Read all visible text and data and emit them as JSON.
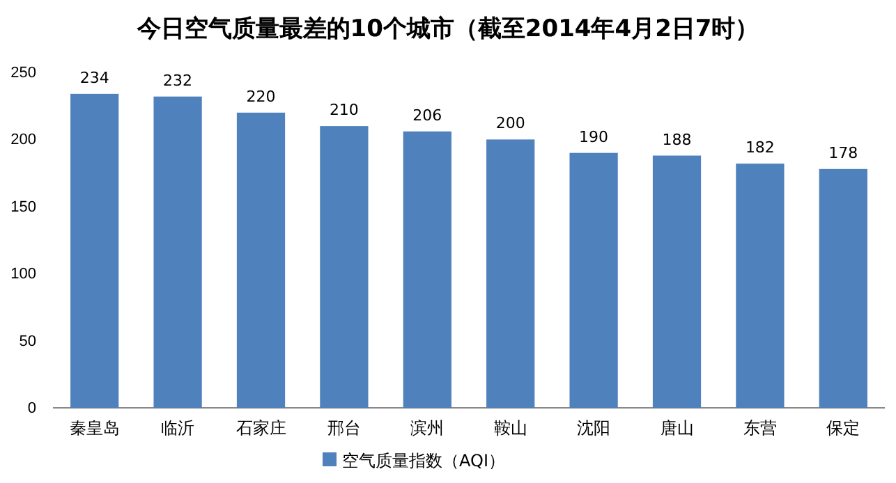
{
  "chart_data": {
    "type": "bar",
    "title": "今日空气质量最差的10个城市（截至2014年4月2日7时）",
    "categories": [
      "秦皇岛",
      "临沂",
      "石家庄",
      "邢台",
      "滨州",
      "鞍山",
      "沈阳",
      "唐山",
      "东营",
      "保定"
    ],
    "series": [
      {
        "name": "空气质量指数（AQI）",
        "color": "#4f81bd",
        "values": [
          234,
          232,
          220,
          210,
          206,
          200,
          190,
          188,
          182,
          178
        ]
      }
    ],
    "ylim": [
      0,
      250
    ],
    "yticks": [
      0,
      50,
      100,
      150,
      200,
      250
    ],
    "data_labels": true,
    "grid": false,
    "legend": "bottom"
  }
}
